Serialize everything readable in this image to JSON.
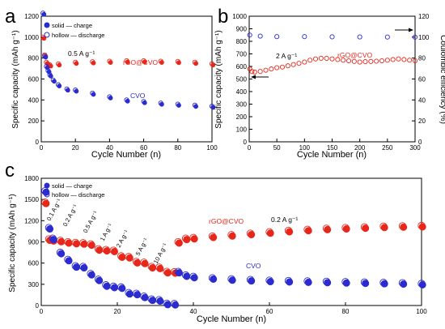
{
  "colors": {
    "red": "#e8261a",
    "blue": "#2b2bd0",
    "axis": "#000000"
  },
  "chart_data": [
    {
      "panel_label": "a",
      "type": "scatter",
      "xlabel": "Cycle Number (n)",
      "ylabel": "Specific capacity (mAh g⁻¹)",
      "xlim": [
        0,
        100
      ],
      "ylim": [
        0,
        1200
      ],
      "xticks": [
        "0",
        "20",
        "40",
        "60",
        "80",
        "100"
      ],
      "yticks": [
        "0",
        "200",
        "400",
        "600",
        "800",
        "1000",
        "1200"
      ],
      "legend": [
        "solid — charge",
        "hollow — discharge"
      ],
      "legend_position": "top-left",
      "annotations": [
        "0.5 A g⁻¹"
      ],
      "series": [
        {
          "name": "rGO@CVO",
          "color": "#e8261a",
          "x": [
            1,
            2,
            3,
            4,
            5,
            10,
            20,
            30,
            40,
            50,
            60,
            70,
            80,
            90,
            100
          ],
          "y": [
            1000,
            830,
            760,
            740,
            735,
            745,
            760,
            765,
            770,
            775,
            775,
            770,
            768,
            760,
            745
          ]
        },
        {
          "name": "CVO",
          "color": "#2b2bd0",
          "x": [
            1,
            2,
            3,
            4,
            5,
            7,
            10,
            15,
            20,
            30,
            40,
            50,
            60,
            70,
            80,
            90,
            100
          ],
          "y": [
            1230,
            820,
            720,
            680,
            640,
            590,
            545,
            505,
            495,
            465,
            430,
            400,
            385,
            370,
            360,
            350,
            340
          ]
        }
      ]
    },
    {
      "panel_label": "b",
      "type": "scatter",
      "xlabel": "Cycle Number (n)",
      "ylabel": "Specific capacity (mAh g⁻¹)",
      "ylabel_right": "Coulombic efficiency (%)",
      "xlim": [
        0,
        300
      ],
      "ylim": [
        0,
        1000
      ],
      "ylim_right": [
        0,
        120
      ],
      "xticks": [
        "0",
        "50",
        "100",
        "150",
        "200",
        "250",
        "300"
      ],
      "yticks": [
        "0",
        "100",
        "200",
        "300",
        "400",
        "500",
        "600",
        "700",
        "800",
        "900",
        "1000"
      ],
      "yticks_right": [
        "0",
        "20",
        "40",
        "60",
        "80",
        "100",
        "120"
      ],
      "annotations": [
        "2 A g⁻¹"
      ],
      "series": [
        {
          "name": "rGO@CVO",
          "color": "#e8261a",
          "x": [
            1,
            5,
            10,
            20,
            30,
            40,
            50,
            60,
            70,
            80,
            90,
            100,
            110,
            120,
            130,
            140,
            150,
            160,
            170,
            180,
            190,
            200,
            210,
            220,
            230,
            240,
            250,
            260,
            270,
            280,
            290,
            300
          ],
          "y": [
            580,
            560,
            555,
            560,
            570,
            580,
            590,
            595,
            605,
            615,
            625,
            635,
            650,
            660,
            665,
            665,
            660,
            655,
            650,
            645,
            640,
            635,
            638,
            640,
            642,
            645,
            650,
            655,
            660,
            655,
            650,
            645
          ]
        },
        {
          "name": "Coulombic efficiency",
          "color": "#2b2bd0",
          "axis": "right",
          "x": [
            1,
            20,
            50,
            100,
            150,
            200,
            250,
            300
          ],
          "y": [
            102,
            101,
            100.5,
            100.5,
            100.3,
            100.2,
            100.1,
            100
          ]
        }
      ]
    },
    {
      "panel_label": "c",
      "type": "scatter",
      "xlabel": "Cycle Number (n)",
      "ylabel": "Specific capacity (mAh g⁻¹)",
      "xlim": [
        0,
        100
      ],
      "ylim": [
        0,
        1800
      ],
      "xticks": [
        "0",
        "20",
        "40",
        "60",
        "80",
        "100"
      ],
      "yticks": [
        "0",
        "300",
        "600",
        "900",
        "1200",
        "1500",
        "1800"
      ],
      "legend": [
        "solid — charge",
        "hollow — discharge"
      ],
      "legend_position": "top-left",
      "annotations": [
        "0.1 A g⁻¹",
        "0.2 A g⁻¹",
        "0.5 A g⁻¹",
        "1 A g⁻¹",
        "2 A g⁻¹",
        "5 A g⁻¹",
        "10 A g⁻¹",
        "0.2 A g⁻¹"
      ],
      "series": [
        {
          "name": "rGO@CVO",
          "color": "#e8261a",
          "x": [
            1,
            2,
            3,
            5,
            7,
            9,
            11,
            13,
            15,
            17,
            19,
            21,
            23,
            25,
            27,
            29,
            31,
            33,
            35,
            36,
            38,
            40,
            45,
            50,
            55,
            60,
            65,
            70,
            75,
            80,
            85,
            90,
            95,
            100
          ],
          "y": [
            1460,
            940,
            930,
            920,
            900,
            890,
            885,
            870,
            800,
            790,
            780,
            700,
            690,
            620,
            610,
            550,
            540,
            480,
            475,
            900,
            950,
            960,
            980,
            1000,
            1020,
            1040,
            1060,
            1075,
            1090,
            1100,
            1110,
            1120,
            1125,
            1130
          ]
        },
        {
          "name": "CVO",
          "color": "#2b2bd0",
          "x": [
            1,
            2,
            3,
            5,
            7,
            9,
            11,
            13,
            15,
            17,
            19,
            21,
            23,
            25,
            27,
            29,
            31,
            33,
            35,
            36,
            38,
            40,
            45,
            50,
            55,
            60,
            65,
            70,
            75,
            80,
            85,
            90,
            95,
            100
          ],
          "y": [
            1620,
            1100,
            950,
            750,
            650,
            560,
            550,
            450,
            370,
            290,
            270,
            260,
            180,
            170,
            130,
            90,
            80,
            30,
            25,
            480,
            430,
            410,
            390,
            375,
            365,
            355,
            350,
            345,
            340,
            335,
            330,
            325,
            320,
            310
          ]
        }
      ]
    }
  ]
}
